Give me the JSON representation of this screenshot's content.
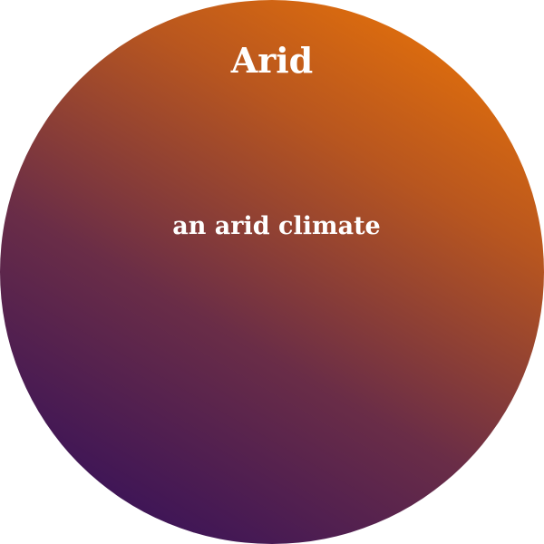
{
  "card": {
    "title": "Arid",
    "description": "an arid climate",
    "colors": {
      "gradient_start": "#2a0a5e",
      "gradient_end": "#f57b02",
      "text": "#ffffff"
    }
  }
}
